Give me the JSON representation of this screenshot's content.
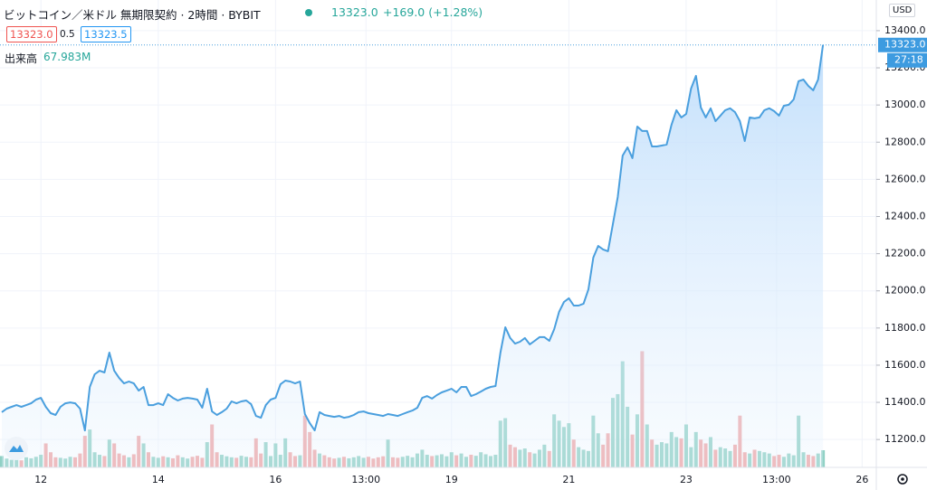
{
  "header": {
    "title": "ビットコイン／米ドル 無期限契約 · 2時間 · BYBIT",
    "price": "13323.0",
    "change": "+169.0 (+1.28%)",
    "bid": "13323.0",
    "spread": "0.5",
    "ask": "13323.5",
    "volume_value": "67.983M",
    "currency": "USD",
    "last_price_tag": "13323.0",
    "countdown": "27:18"
  },
  "chart_data": {
    "type": "area",
    "color": "#4a9fde",
    "grid": true,
    "values": [
      11347,
      11366,
      11376,
      11385,
      11376,
      11385,
      11395,
      11415,
      11424,
      11376,
      11342,
      11332,
      11376,
      11395,
      11400,
      11395,
      11366,
      11249,
      11483,
      11551,
      11570,
      11561,
      11668,
      11570,
      11531,
      11502,
      11512,
      11502,
      11463,
      11483,
      11385,
      11385,
      11395,
      11385,
      11444,
      11424,
      11410,
      11420,
      11424,
      11420,
      11415,
      11371,
      11473,
      11351,
      11332,
      11347,
      11366,
      11405,
      11395,
      11405,
      11410,
      11390,
      11327,
      11317,
      11385,
      11415,
      11424,
      11497,
      11517,
      11512,
      11502,
      11512,
      11337,
      11288,
      11249,
      11347,
      11332,
      11327,
      11322,
      11327,
      11317,
      11322,
      11332,
      11347,
      11351,
      11342,
      11337,
      11332,
      11327,
      11337,
      11332,
      11327,
      11337,
      11347,
      11356,
      11371,
      11424,
      11434,
      11420,
      11439,
      11454,
      11463,
      11473,
      11454,
      11483,
      11483,
      11434,
      11444,
      11458,
      11473,
      11483,
      11488,
      11668,
      11804,
      11746,
      11716,
      11726,
      11746,
      11712,
      11731,
      11751,
      11751,
      11731,
      11794,
      11887,
      11940,
      11960,
      11921,
      11921,
      11931,
      12008,
      12179,
      12242,
      12223,
      12213,
      12359,
      12505,
      12728,
      12772,
      12714,
      12884,
      12860,
      12860,
      12777,
      12777,
      12782,
      12787,
      12894,
      12972,
      12933,
      12952,
      13089,
      13157,
      12986,
      12933,
      12982,
      12913,
      12943,
      12972,
      12982,
      12962,
      12913,
      12806,
      12933,
      12928,
      12933,
      12972,
      12982,
      12967,
      12943,
      12996,
      13001,
      13030,
      13128,
      13137,
      13103,
      13079,
      13137,
      13323
    ],
    "volume": {
      "name": "出来高",
      "axis": "y2",
      "up_color": "#8fd0c4",
      "down_color": "#f0a5a5",
      "values": [
        45,
        35,
        30,
        32,
        28,
        40,
        36,
        42,
        50,
        95,
        60,
        40,
        38,
        35,
        42,
        40,
        55,
        125,
        150,
        60,
        50,
        45,
        110,
        95,
        55,
        48,
        40,
        52,
        125,
        95,
        60,
        42,
        38,
        44,
        40,
        36,
        48,
        40,
        35,
        42,
        46,
        38,
        100,
        170,
        60,
        50,
        44,
        40,
        38,
        46,
        42,
        40,
        115,
        55,
        100,
        45,
        95,
        50,
        115,
        60,
        45,
        48,
        205,
        140,
        70,
        55,
        48,
        40,
        35,
        38,
        42,
        36,
        40,
        45,
        38,
        42,
        35,
        40,
        44,
        110,
        40,
        38,
        42,
        46,
        40,
        55,
        70,
        50,
        45,
        48,
        52,
        44,
        60,
        48,
        55,
        42,
        50,
        46,
        60,
        52,
        45,
        50,
        185,
        195,
        90,
        80,
        70,
        75,
        60,
        55,
        70,
        90,
        65,
        210,
        185,
        160,
        175,
        110,
        80,
        70,
        65,
        205,
        135,
        90,
        135,
        275,
        290,
        420,
        240,
        130,
        210,
        460,
        170,
        110,
        90,
        100,
        95,
        140,
        120,
        115,
        170,
        80,
        140,
        110,
        95,
        120,
        70,
        80,
        75,
        65,
        90,
        205,
        60,
        55,
        70,
        65,
        60,
        55,
        45,
        50,
        42,
        55,
        48,
        205,
        60,
        50,
        45,
        55,
        68
      ]
    },
    "y2lim": [
      0,
      1850
    ],
    "xlim": [
      -0.37,
      178.9
    ],
    "xticks": [
      {
        "value": 8,
        "label": "12"
      },
      {
        "value": 32,
        "label": "14"
      },
      {
        "value": 56,
        "label": "16"
      },
      {
        "value": 74.5,
        "label": "13:00"
      },
      {
        "value": 92,
        "label": "19"
      },
      {
        "value": 116,
        "label": "21"
      },
      {
        "value": 140,
        "label": "23"
      },
      {
        "value": 158.5,
        "label": "13:00"
      },
      {
        "value": 176,
        "label": "26"
      }
    ],
    "ylim": [
      11050,
      13565
    ],
    "yticks": [
      {
        "value": 11200,
        "label": "11200.0"
      },
      {
        "value": 11400,
        "label": "11400.0"
      },
      {
        "value": 11600,
        "label": "11600.0"
      },
      {
        "value": 11800,
        "label": "11800.0"
      },
      {
        "value": 12000,
        "label": "12000.0"
      },
      {
        "value": 12200,
        "label": "12200.0"
      },
      {
        "value": 12400,
        "label": "12400.0"
      },
      {
        "value": 12600,
        "label": "12600.0"
      },
      {
        "value": 12800,
        "label": "12800.0"
      },
      {
        "value": 13000,
        "label": "13000.0"
      },
      {
        "value": 13200,
        "label": "13200.0"
      },
      {
        "value": 13400,
        "label": "13400.0"
      }
    ]
  }
}
